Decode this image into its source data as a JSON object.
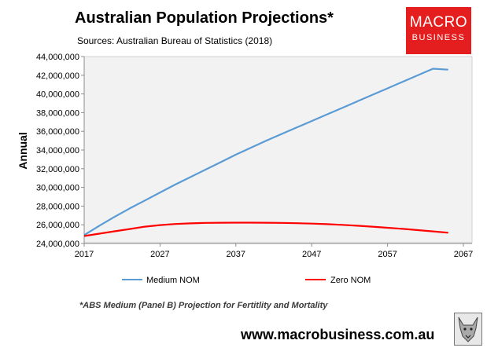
{
  "header": {
    "title": "Australian Population Projections*",
    "source": "Sources: Australian Bureau of Statistics (2018)"
  },
  "logo": {
    "line1": "MACRO",
    "line2": "BUSINESS"
  },
  "chart_data": {
    "type": "line",
    "title": "Australian Population Projections*",
    "xlabel": "",
    "ylabel": "Annual",
    "xlim": [
      2017,
      2067
    ],
    "ylim": [
      24000000,
      44000000
    ],
    "grid": false,
    "legend": "bottom",
    "x_ticks": [
      "2017",
      "2027",
      "2037",
      "2047",
      "2057",
      "2067"
    ],
    "y_ticks": [
      "24,000,000",
      "26,000,000",
      "28,000,000",
      "30,000,000",
      "32,000,000",
      "34,000,000",
      "36,000,000",
      "38,000,000",
      "40,000,000",
      "42,000,000",
      "44,000,000"
    ],
    "x": [
      2017,
      2019,
      2021,
      2023,
      2025,
      2027,
      2029,
      2031,
      2033,
      2035,
      2037,
      2039,
      2041,
      2043,
      2045,
      2047,
      2049,
      2051,
      2053,
      2055,
      2057,
      2059,
      2061,
      2063,
      2065
    ],
    "series": [
      {
        "name": "Medium NOM",
        "color": "#5b9bd5",
        "values": [
          24900000,
          25900000,
          26850000,
          27750000,
          28600000,
          29450000,
          30300000,
          31100000,
          31900000,
          32700000,
          33500000,
          34250000,
          35000000,
          35700000,
          36400000,
          37100000,
          37800000,
          38500000,
          39200000,
          39900000,
          40600000,
          41300000,
          42000000,
          42700000,
          42600000
        ]
      },
      {
        "name": "Zero NOM",
        "color": "#ff0000",
        "values": [
          24800000,
          25050000,
          25300000,
          25550000,
          25800000,
          25970000,
          26080000,
          26150000,
          26200000,
          26220000,
          26230000,
          26230000,
          26220000,
          26200000,
          26170000,
          26130000,
          26070000,
          25990000,
          25900000,
          25800000,
          25680000,
          25560000,
          25430000,
          25290000,
          25150000
        ]
      }
    ]
  },
  "footnote": "*ABS Medium (Panel B) Projection for Fertitlity and Mortality",
  "url": "www.macrobusiness.com.au"
}
